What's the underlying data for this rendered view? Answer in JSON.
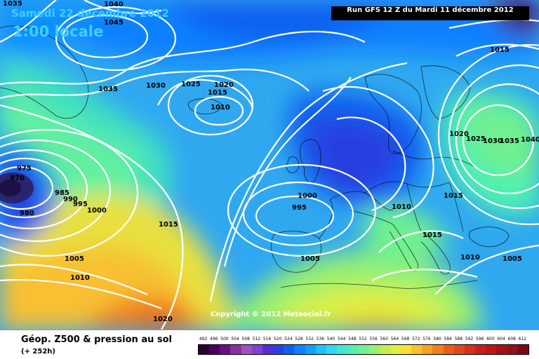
{
  "header": {
    "valid_date": "Samedi 22 décembre 2012",
    "valid_time": "1:00 locale",
    "run": "Run GFS 12 Z du Mardi 11 décembre 2012"
  },
  "footer": {
    "product": "Géop. Z500 & pression au sol",
    "lead": "(+ 252h)",
    "copyright": "Copyright © 2012 Meteociel.fr"
  },
  "legend": {
    "labels": [
      "492",
      "496",
      "500",
      "504",
      "508",
      "512",
      "516",
      "520",
      "524",
      "528",
      "532",
      "536",
      "540",
      "544",
      "548",
      "552",
      "556",
      "560",
      "564",
      "568",
      "572",
      "576",
      "580",
      "584",
      "588",
      "592",
      "596",
      "600",
      "604",
      "608",
      "612"
    ],
    "colors": [
      "#2a0030",
      "#4a0060",
      "#6a1080",
      "#8a30a0",
      "#a050c0",
      "#8040d0",
      "#5030d8",
      "#2840e0",
      "#1060f0",
      "#1080ff",
      "#10a0ff",
      "#20c0ff",
      "#30d8f0",
      "#40e8d0",
      "#50f0b0",
      "#70f090",
      "#98f070",
      "#c0f050",
      "#e0f040",
      "#f8e030",
      "#f8c030",
      "#f8a028",
      "#f08020",
      "#e86018",
      "#e04818",
      "#d83018",
      "#c82018",
      "#b81818",
      "#a81018",
      "#901018",
      "#780818"
    ]
  },
  "isobars": [
    {
      "text": "1035"
    },
    {
      "text": "1040"
    },
    {
      "text": "1045"
    },
    {
      "text": "1015"
    },
    {
      "text": "1035"
    },
    {
      "text": "1030"
    },
    {
      "text": "1025"
    },
    {
      "text": "1020"
    },
    {
      "text": "1015"
    },
    {
      "text": "1010"
    },
    {
      "text": "975"
    },
    {
      "text": "970"
    },
    {
      "text": "985"
    },
    {
      "text": "990"
    },
    {
      "text": "995"
    },
    {
      "text": "980"
    },
    {
      "text": "1000"
    },
    {
      "text": "1015"
    },
    {
      "text": "1005"
    },
    {
      "text": "1010"
    },
    {
      "text": "1020"
    },
    {
      "text": "1000"
    },
    {
      "text": "995"
    },
    {
      "text": "1010"
    },
    {
      "text": "1005"
    },
    {
      "text": "1015"
    },
    {
      "text": "1015"
    },
    {
      "text": "1010"
    },
    {
      "text": "1005"
    },
    {
      "text": "1020"
    },
    {
      "text": "1025"
    },
    {
      "text": "1030"
    },
    {
      "text": "1035"
    },
    {
      "text": "1040"
    }
  ]
}
